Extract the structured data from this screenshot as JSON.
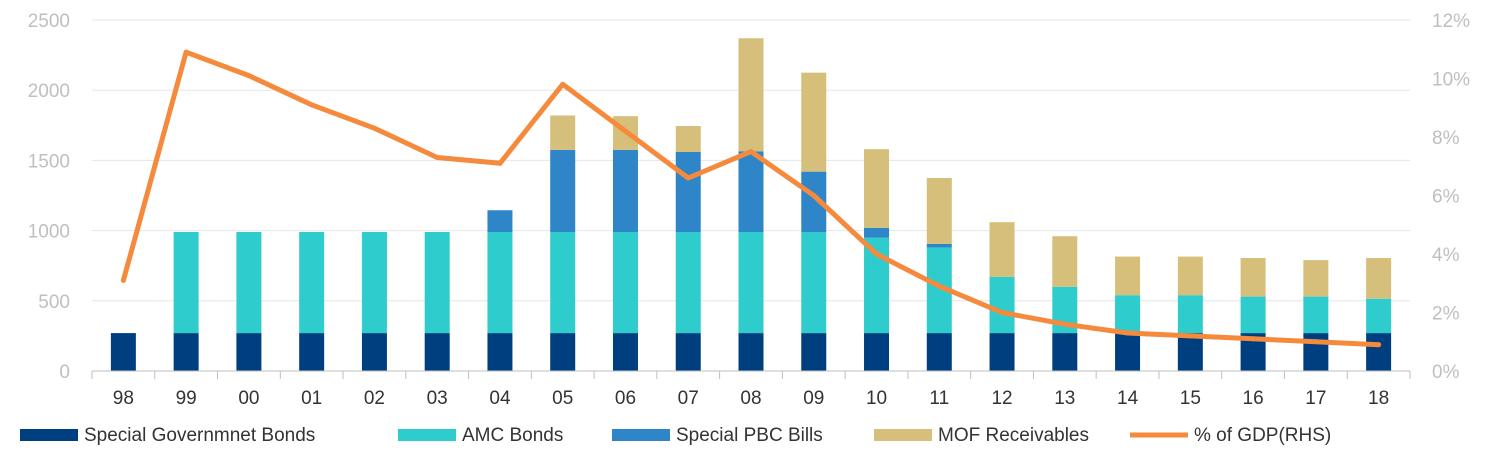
{
  "chart_data": {
    "type": "bar",
    "stacked": true,
    "categories": [
      "98",
      "99",
      "00",
      "01",
      "02",
      "03",
      "04",
      "05",
      "06",
      "07",
      "08",
      "09",
      "10",
      "11",
      "12",
      "13",
      "14",
      "15",
      "16",
      "17",
      "18"
    ],
    "series": [
      {
        "name": "Special Governmnet Bonds",
        "kind": "bar",
        "axis": "left",
        "color": "#003f7f",
        "values": [
          270,
          270,
          270,
          270,
          270,
          270,
          270,
          270,
          270,
          270,
          270,
          270,
          270,
          270,
          270,
          270,
          270,
          270,
          270,
          270,
          270
        ]
      },
      {
        "name": "AMC Bonds",
        "kind": "bar",
        "axis": "left",
        "color": "#2ecccc",
        "values": [
          0,
          720,
          720,
          720,
          720,
          720,
          720,
          720,
          720,
          720,
          720,
          720,
          680,
          610,
          400,
          330,
          270,
          270,
          260,
          260,
          245
        ]
      },
      {
        "name": "Special PBC Bills",
        "kind": "bar",
        "axis": "left",
        "color": "#2e86c9",
        "values": [
          0,
          0,
          0,
          0,
          0,
          0,
          155,
          585,
          585,
          570,
          575,
          430,
          70,
          25,
          0,
          0,
          0,
          0,
          0,
          0,
          0
        ]
      },
      {
        "name": "MOF Receivables",
        "kind": "bar",
        "axis": "left",
        "color": "#d6bf7a",
        "values": [
          0,
          0,
          0,
          0,
          0,
          0,
          0,
          245,
          240,
          185,
          805,
          705,
          560,
          470,
          390,
          360,
          275,
          275,
          275,
          260,
          290
        ]
      },
      {
        "name": "% of GDP(RHS)",
        "kind": "line",
        "axis": "right",
        "color": "#f58a3c",
        "values": [
          3.1,
          10.9,
          10.1,
          9.1,
          8.3,
          7.3,
          7.1,
          9.8,
          8.2,
          6.6,
          7.5,
          6.0,
          4.0,
          2.9,
          2.0,
          1.6,
          1.3,
          1.2,
          1.1,
          1.0,
          0.9
        ]
      }
    ],
    "y_left": {
      "min": 0,
      "max": 2500,
      "ticks": [
        "0",
        "500",
        "1000",
        "1500",
        "2000",
        "2500"
      ]
    },
    "y_right": {
      "min": 0,
      "max": 12,
      "ticks": [
        "0%",
        "2%",
        "4%",
        "6%",
        "8%",
        "10%",
        "12%"
      ]
    },
    "grid": true,
    "legend_position": "bottom"
  }
}
